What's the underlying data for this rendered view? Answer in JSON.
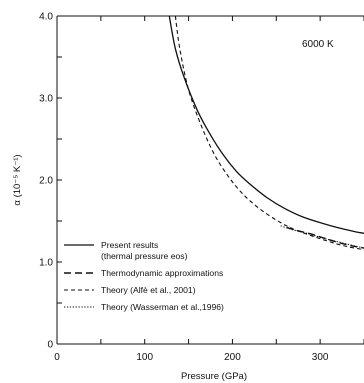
{
  "chart_data": {
    "type": "line",
    "annotation": "6000 K",
    "xlabel": "Pressure (GPa)",
    "ylabel": "α (10⁻⁵ K⁻¹)",
    "xlim": [
      0,
      350
    ],
    "ylim": [
      0,
      4.0
    ],
    "x_ticks": [
      0,
      50,
      100,
      150,
      200,
      250,
      300,
      350
    ],
    "x_tick_labels": [
      "0",
      "",
      "100",
      "",
      "200",
      "",
      "300",
      ""
    ],
    "y_ticks": [
      0,
      0.5,
      1.0,
      1.5,
      2.0,
      2.5,
      3.0,
      3.5,
      4.0
    ],
    "y_tick_labels": [
      "0",
      "",
      "1.0",
      "",
      "2.0",
      "",
      "3.0",
      "",
      "4.0"
    ],
    "grid": false,
    "legend_position": "bottom-left",
    "legend": [
      [
        "Present results",
        "(thermal pressure eos)"
      ],
      [
        "Thermodynamic approximations"
      ],
      [
        "Theory (Alfè et al., 2001)"
      ],
      [
        "Theory (Wasserman et al.,1996)"
      ]
    ],
    "series": [
      {
        "name": "Present results (thermal pressure eos)",
        "style": "solid",
        "x": [
          128,
          135,
          145,
          160,
          175,
          190,
          205,
          220,
          240,
          260,
          280,
          300,
          320,
          340,
          350
        ],
        "y": [
          4.0,
          3.6,
          3.25,
          2.85,
          2.55,
          2.3,
          2.1,
          1.95,
          1.78,
          1.65,
          1.55,
          1.48,
          1.42,
          1.37,
          1.35
        ]
      },
      {
        "name": "Thermodynamic approximations",
        "style": "long-dash",
        "x": [
          262,
          275,
          290,
          305,
          320,
          335,
          350
        ],
        "y": [
          1.42,
          1.38,
          1.34,
          1.29,
          1.24,
          1.2,
          1.17
        ]
      },
      {
        "name": "Theory (Alfè et al., 2001)",
        "style": "short-dash",
        "x": [
          135,
          140,
          150,
          165,
          180,
          195,
          210,
          225,
          240,
          255,
          270,
          290,
          310,
          330,
          350
        ],
        "y": [
          4.0,
          3.6,
          3.1,
          2.65,
          2.3,
          2.05,
          1.85,
          1.7,
          1.58,
          1.48,
          1.4,
          1.32,
          1.25,
          1.19,
          1.15
        ]
      },
      {
        "name": "Theory (Wasserman et al.,1996)",
        "style": "dotted",
        "x": [
          255,
          270,
          285,
          300,
          315,
          330,
          350
        ],
        "y": [
          1.44,
          1.39,
          1.35,
          1.3,
          1.26,
          1.22,
          1.17
        ]
      }
    ]
  }
}
